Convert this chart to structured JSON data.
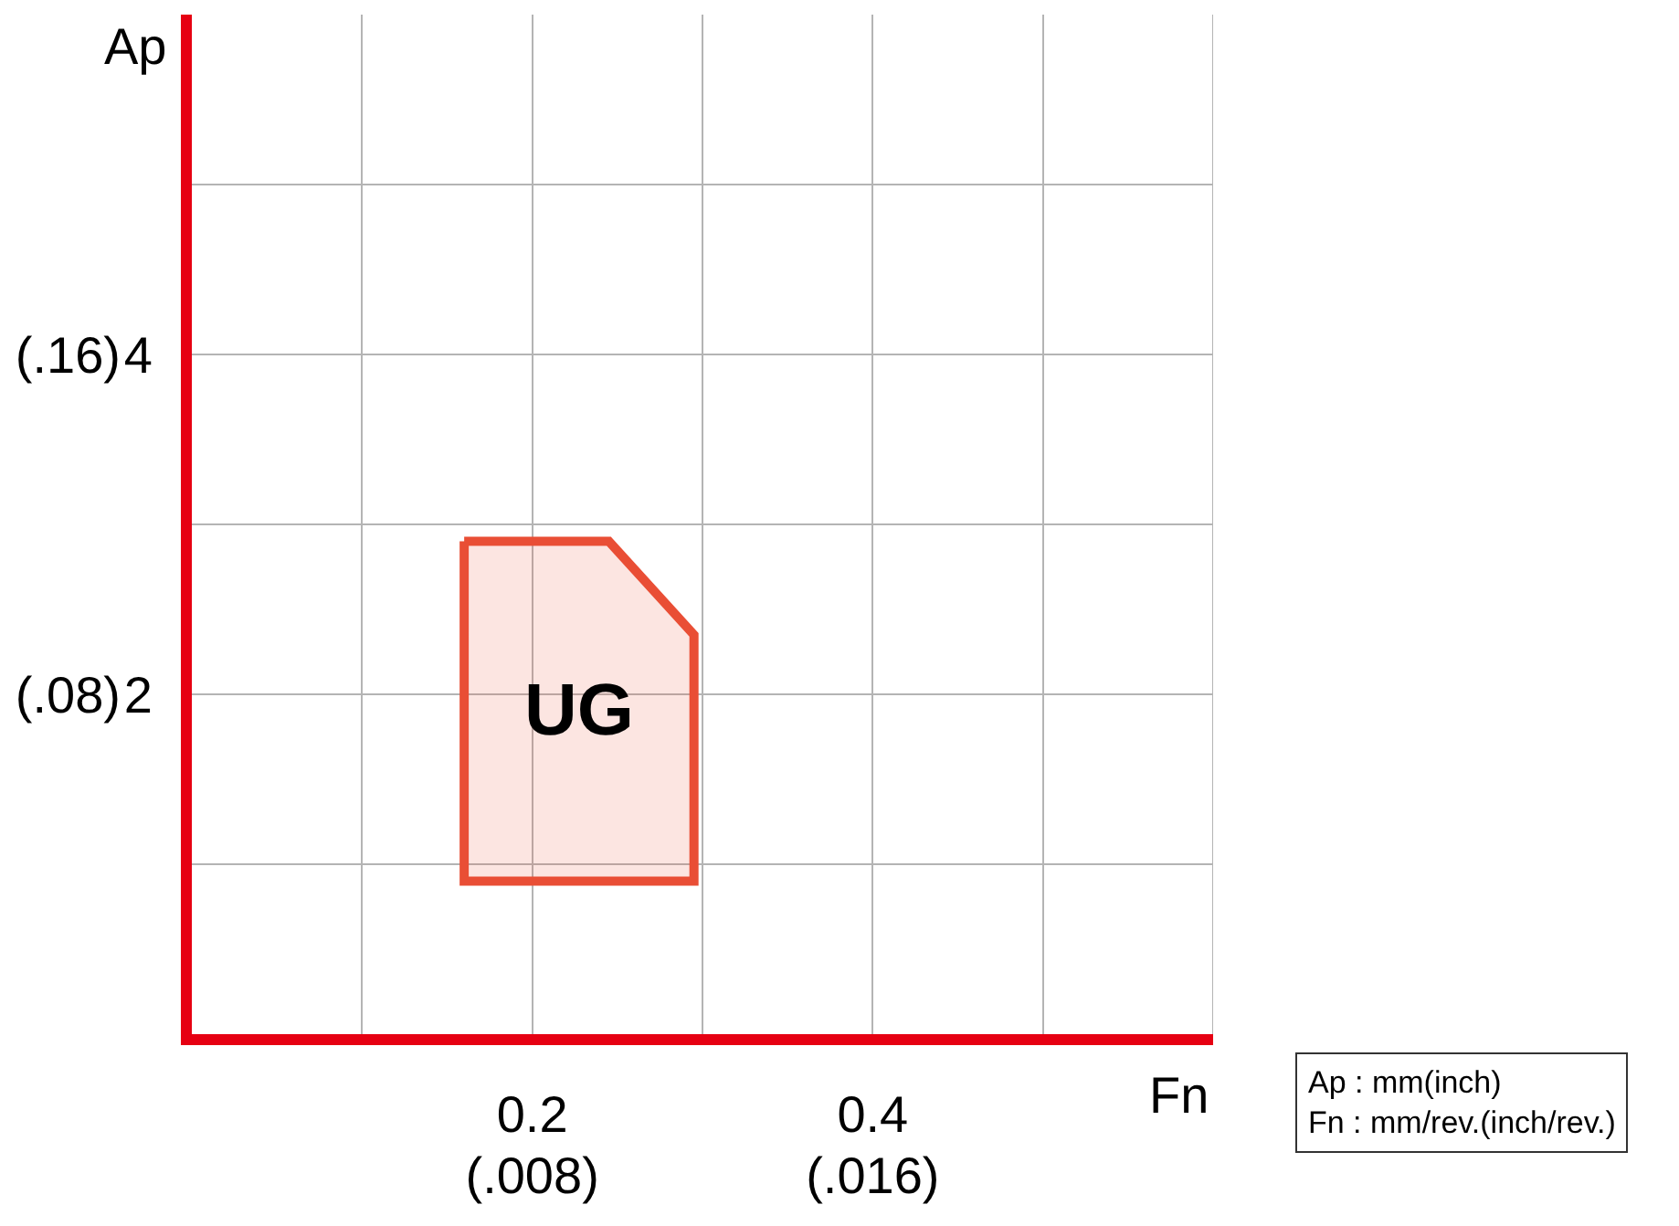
{
  "chart_data": {
    "type": "area",
    "xlabel": "Fn",
    "ylabel": "Ap",
    "annotations": [
      "Ap : mm(inch)\nFn : mm/rev.(inch/rev.)"
    ],
    "xlim": [
      0,
      0.6
    ],
    "xticks": [
      {
        "value": 0.1,
        "label": null
      },
      0.2,
      {
        "value": 0.3,
        "label": null
      },
      0.4,
      {
        "value": 0.5,
        "label": null
      },
      {
        "value": 0.6,
        "label": null
      }
    ],
    "x2lim": [
      0,
      0.024
    ],
    "x2ticks": [
      {
        "value": 0.008,
        "label": "(.008)"
      },
      {
        "value": 0.016,
        "label": "(.016)"
      }
    ],
    "ylim": [
      0,
      6
    ],
    "yticks": [
      {
        "value": 1,
        "label": null
      },
      2,
      {
        "value": 3,
        "label": null
      },
      4,
      {
        "value": 5,
        "label": null
      }
    ],
    "y2lim": [
      0,
      0.24
    ],
    "y2ticks": [
      {
        "value": 0.08,
        "label": "(.08)"
      },
      {
        "value": 0.16,
        "label": "(.16)"
      }
    ],
    "grid": true,
    "series": [
      {
        "name": "UG",
        "color": "#e94e35",
        "x": [
          0.16,
          0.245,
          0.295,
          0.295,
          0.16
        ],
        "values": [
          2.9,
          2.9,
          2.35,
          0.9,
          0.9
        ]
      }
    ]
  }
}
